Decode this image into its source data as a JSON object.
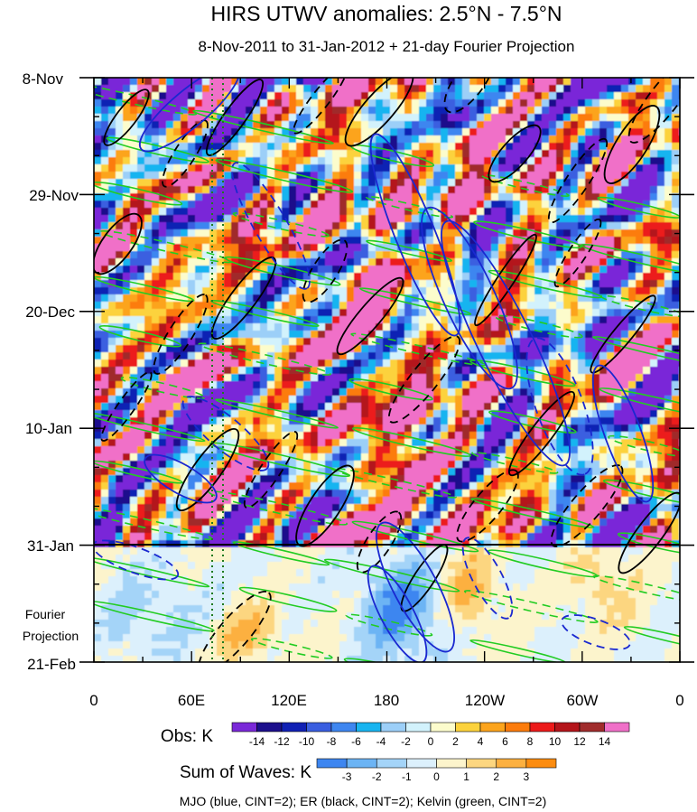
{
  "chart_data": {
    "type": "heatmap",
    "title": "HIRS UTWV anomalies: 2.5°N - 7.5°N",
    "subtitle": "8-Nov-2011 to 31-Jan-2012 + 21-day Fourier Projection",
    "x_ticks": [
      "0",
      "60E",
      "120E",
      "180",
      "120W",
      "60W",
      "0"
    ],
    "y_ticks": [
      "8-Nov",
      "29-Nov",
      "20-Dec",
      "10-Jan",
      "31-Jan",
      "21-Feb"
    ],
    "projection_label": [
      "Fourier",
      "Projection"
    ],
    "projection_start": "31-Jan",
    "obs_label": "Obs: K",
    "obs_levels": [
      "-14",
      "-12",
      "-10",
      "-8",
      "-6",
      "-4",
      "-2",
      "0",
      "2",
      "4",
      "6",
      "8",
      "10",
      "12",
      "14"
    ],
    "obs_colors": [
      "#7a28d8",
      "#1c0f8c",
      "#1020b4",
      "#3a5ee0",
      "#3e86f0",
      "#18b4f0",
      "#9ccff8",
      "#d2f2fc",
      "#fcfccc",
      "#fcd23c",
      "#fca41c",
      "#fc7c0c",
      "#ec1a1a",
      "#b4141a",
      "#a02c2c",
      "#f070c8"
    ],
    "waves_label": "Sum of Waves: K",
    "wave_levels": [
      "-3",
      "-2",
      "-1",
      "0",
      "1",
      "2",
      "3"
    ],
    "wave_colors": [
      "#3e86f0",
      "#6cb4f4",
      "#a4d4f8",
      "#dcf0fc",
      "#fcf4cc",
      "#fcd680",
      "#fcb040",
      "#fc8c10"
    ],
    "footnote": "MJO (blue, CINT=2); ER (black, CINT=2); Kelvin (green, CINT=2)",
    "contour_colors": {
      "mjo": "#1a28d0",
      "er": "#000000",
      "kelvin": "#22cc22",
      "guide": "#1f7a1f"
    },
    "observed_days": 84,
    "projection_days": 21
  }
}
